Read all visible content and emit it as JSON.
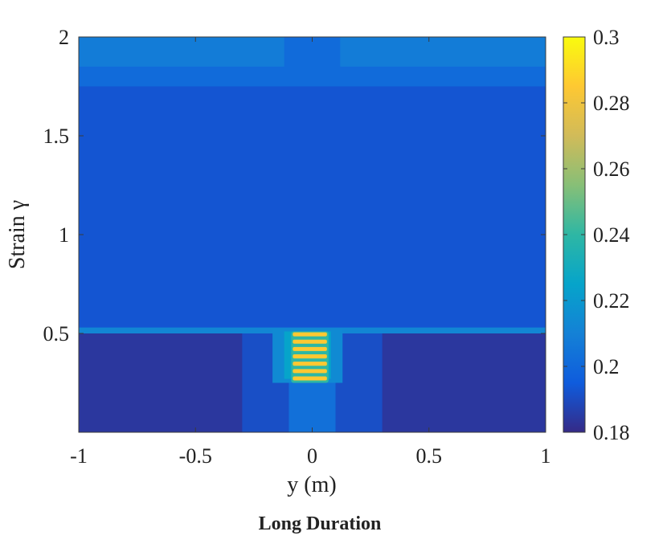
{
  "chart_data": {
    "type": "heatmap",
    "title": "Long Duration",
    "xlabel": "y (m)",
    "ylabel": "Strain γ",
    "xlim": [
      -1,
      1
    ],
    "ylim": [
      0,
      2
    ],
    "xticks": [
      "-1",
      "-0.5",
      "0",
      "0.5",
      "1"
    ],
    "yticks": [
      "0.5",
      "1",
      "1.5",
      "2"
    ],
    "colorbar": {
      "min": 0.18,
      "max": 0.3,
      "ticks": [
        "0.18",
        "0.2",
        "0.22",
        "0.24",
        "0.26",
        "0.28",
        "0.3"
      ],
      "colormap": "parula"
    },
    "regions": [
      {
        "x": [
          -1,
          1
        ],
        "y": [
          0,
          0.5
        ],
        "value": 0.184
      },
      {
        "x": [
          -0.3,
          0.3
        ],
        "y": [
          0,
          0.5
        ],
        "value": 0.191
      },
      {
        "x": [
          -0.1,
          0.1
        ],
        "y": [
          0,
          0.5
        ],
        "value": 0.203
      },
      {
        "x": [
          -1,
          1
        ],
        "y": [
          0.5,
          1.75
        ],
        "value": 0.193
      },
      {
        "x": [
          -1,
          1
        ],
        "y": [
          1.75,
          2
        ],
        "value": 0.201
      },
      {
        "x": [
          -1,
          -0.12
        ],
        "y": [
          1.85,
          2
        ],
        "value": 0.208
      },
      {
        "x": [
          0.12,
          1
        ],
        "y": [
          1.85,
          2
        ],
        "value": 0.208
      },
      {
        "x": [
          -1,
          1
        ],
        "y": [
          0.5,
          0.53
        ],
        "value": 0.212
      },
      {
        "x": [
          -0.17,
          0.13
        ],
        "y": [
          0.25,
          0.52
        ],
        "value": 0.214
      },
      {
        "x": [
          -0.12,
          0.08
        ],
        "y": [
          0.27,
          0.51
        ],
        "value": 0.225
      },
      {
        "x": [
          -0.09,
          0.07
        ],
        "y": [
          0.25,
          0.51
        ],
        "value": 0.285,
        "striped": true,
        "bands": 7
      }
    ]
  }
}
